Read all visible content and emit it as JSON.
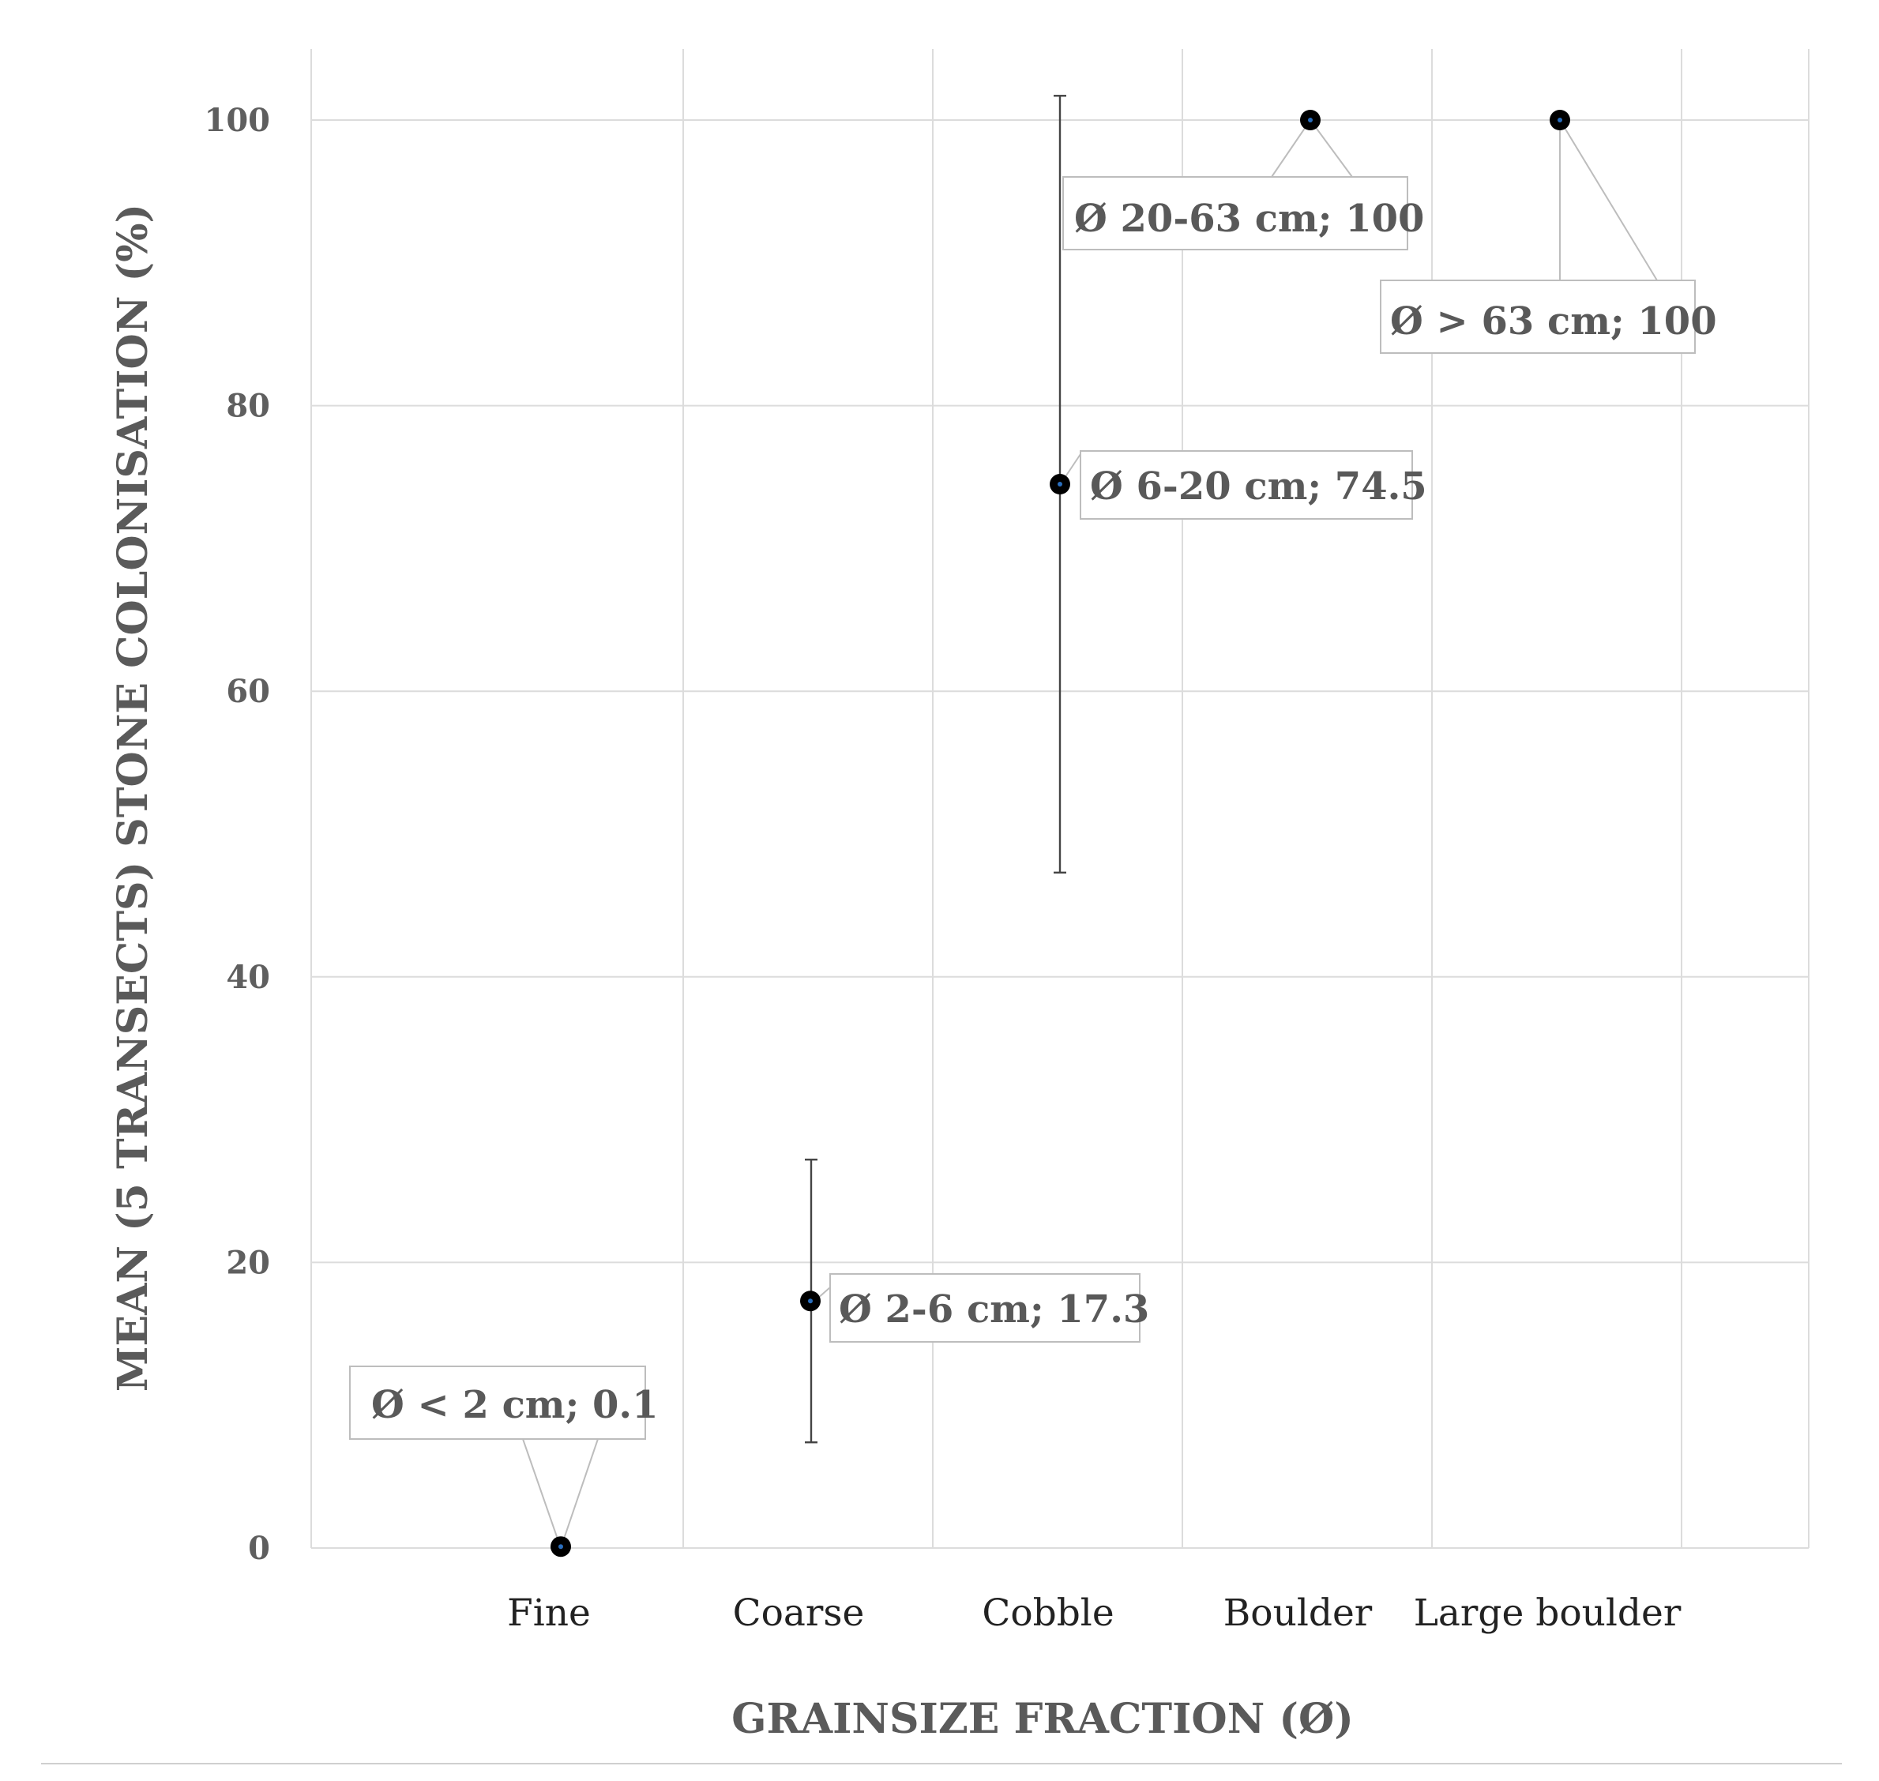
{
  "chart_data": {
    "type": "scatter",
    "xlabel": "GRAINSIZE FRACTION (Ø)",
    "ylabel": "MEAN (5 TRANSECTS) STONE COLONISATION (%)",
    "ylim": [
      0,
      100
    ],
    "yticks": [
      0,
      20,
      40,
      60,
      80,
      100
    ],
    "grid": true,
    "categories": [
      "Fine",
      "Coarse",
      "Cobble",
      "Boulder",
      "Large boulder"
    ],
    "points": [
      {
        "category": "Fine",
        "value": 0.1,
        "error_low": 0.1,
        "error_high": 0.1,
        "label": "Ø < 2 cm; 0.1"
      },
      {
        "category": "Coarse",
        "value": 17.3,
        "error_low": 7.4,
        "error_high": 27.2,
        "label": "Ø 2-6 cm; 17.3"
      },
      {
        "category": "Cobble",
        "value": 74.5,
        "error_low": 47.3,
        "error_high": 101.7,
        "label": "Ø 6-20 cm; 74.5"
      },
      {
        "category": "Boulder",
        "value": 100,
        "error_low": 100,
        "error_high": 100,
        "label": "Ø 20-63 cm; 100"
      },
      {
        "category": "Large boulder",
        "value": 100,
        "error_low": 100,
        "error_high": 100,
        "label": "Ø > 63 cm; 100"
      }
    ],
    "marker_color": "#000000",
    "marker_center_color": "#2a6ebd"
  }
}
